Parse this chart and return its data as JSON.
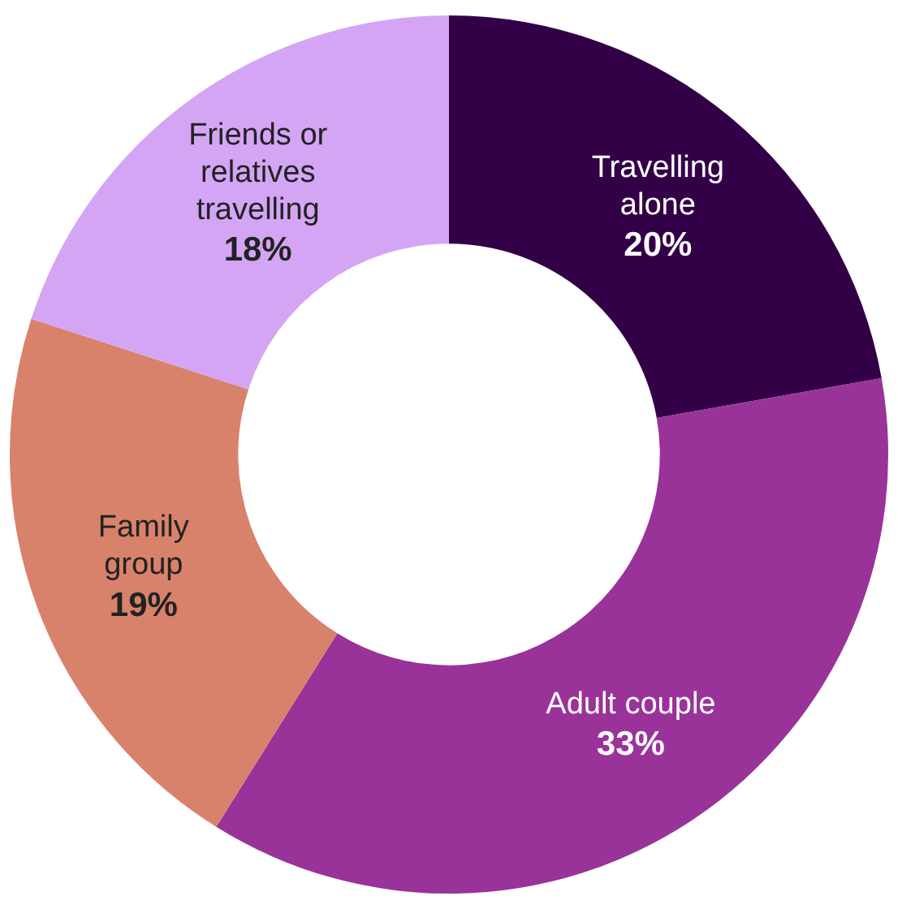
{
  "chart_data": {
    "type": "donut",
    "categories": [
      "Travelling alone",
      "Adult couple",
      "Family group",
      "Friends or relatives travelling"
    ],
    "values": [
      20,
      33,
      19,
      18
    ],
    "value_labels": [
      "20%",
      "33%",
      "19%",
      "18%"
    ],
    "colors": [
      "#330048",
      "#993399",
      "#d9826b",
      "#d4a5f5"
    ],
    "legend": false
  }
}
